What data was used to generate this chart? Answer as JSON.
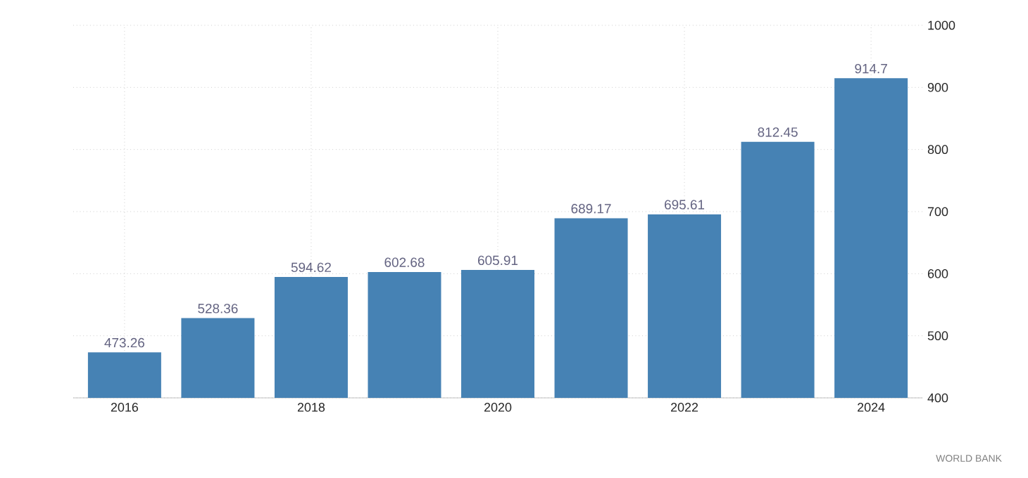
{
  "chart_data": {
    "type": "bar",
    "categories": [
      "2016",
      null,
      "2018",
      null,
      "2020",
      null,
      "2022",
      null,
      "2024"
    ],
    "values": [
      473.26,
      528.36,
      594.62,
      602.68,
      605.91,
      689.17,
      695.61,
      812.45,
      914.7
    ],
    "color": "#4682b4",
    "ylim": [
      400,
      1000
    ],
    "yticks": [
      400,
      500,
      600,
      700,
      800,
      900,
      1000
    ],
    "grid": true,
    "data_labels": true,
    "annotations": [
      "WORLD BANK"
    ]
  }
}
